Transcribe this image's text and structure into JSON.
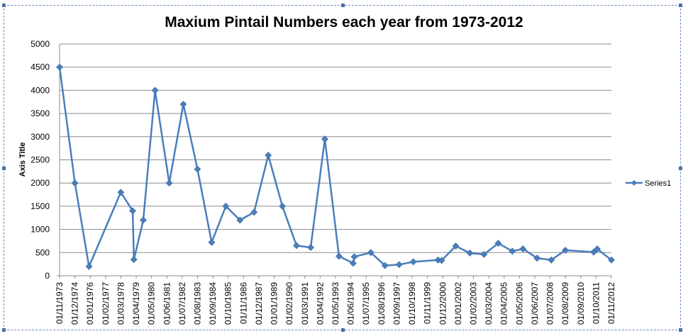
{
  "chart_data": {
    "type": "line",
    "title": "Maxium Pintail Numbers each year from 1973-2012",
    "xlabel": "",
    "ylabel": "Axis Title",
    "ylim": [
      0,
      5000
    ],
    "yticks": [
      0,
      500,
      1000,
      1500,
      2000,
      2500,
      3000,
      3500,
      4000,
      4500,
      5000
    ],
    "xlim": [
      "1973-11-01",
      "2012-11-01"
    ],
    "xtick_labels": [
      "01/11/1973",
      "01/12/1974",
      "01/01/1976",
      "01/02/1977",
      "01/03/1978",
      "01/04/1979",
      "01/05/1980",
      "01/06/1981",
      "01/07/1982",
      "01/08/1983",
      "01/09/1984",
      "01/10/1985",
      "01/11/1986",
      "01/12/1987",
      "01/01/1989",
      "01/02/1990",
      "01/03/1991",
      "01/04/1992",
      "01/05/1993",
      "01/06/1994",
      "01/07/1995",
      "01/08/1996",
      "01/09/1997",
      "01/10/1998",
      "01/11/1999",
      "01/12/2000",
      "01/01/2002",
      "01/02/2003",
      "01/03/2004",
      "01/04/2005",
      "01/05/2006",
      "01/06/2007",
      "01/07/2008",
      "01/08/2009",
      "01/09/2010",
      "01/10/2011",
      "01/11/2012"
    ],
    "grid": true,
    "legend": "right",
    "series": [
      {
        "name": "Series1",
        "color": "#4a7ebb",
        "points": [
          {
            "x": "1973-11-01",
            "y": 4500
          },
          {
            "x": "1974-12-01",
            "y": 2000
          },
          {
            "x": "1975-12-01",
            "y": 200
          },
          {
            "x": "1978-03-01",
            "y": 1800
          },
          {
            "x": "1979-01-01",
            "y": 1400
          },
          {
            "x": "1979-02-01",
            "y": 350
          },
          {
            "x": "1979-10-01",
            "y": 1200
          },
          {
            "x": "1980-08-01",
            "y": 4000
          },
          {
            "x": "1981-08-01",
            "y": 2000
          },
          {
            "x": "1982-08-01",
            "y": 3700
          },
          {
            "x": "1983-08-01",
            "y": 2300
          },
          {
            "x": "1984-08-01",
            "y": 720
          },
          {
            "x": "1985-08-01",
            "y": 1500
          },
          {
            "x": "1986-08-01",
            "y": 1200
          },
          {
            "x": "1987-08-01",
            "y": 1370
          },
          {
            "x": "1988-08-01",
            "y": 2600
          },
          {
            "x": "1989-08-01",
            "y": 1500
          },
          {
            "x": "1990-08-01",
            "y": 650
          },
          {
            "x": "1991-08-01",
            "y": 610
          },
          {
            "x": "1992-08-01",
            "y": 2950
          },
          {
            "x": "1993-08-01",
            "y": 420
          },
          {
            "x": "1994-08-01",
            "y": 270
          },
          {
            "x": "1994-09-01",
            "y": 410
          },
          {
            "x": "1995-11-01",
            "y": 500
          },
          {
            "x": "1996-11-01",
            "y": 220
          },
          {
            "x": "1997-11-01",
            "y": 240
          },
          {
            "x": "1998-11-01",
            "y": 300
          },
          {
            "x": "2000-08-01",
            "y": 340
          },
          {
            "x": "2000-11-01",
            "y": 330
          },
          {
            "x": "2001-11-01",
            "y": 640
          },
          {
            "x": "2002-11-01",
            "y": 490
          },
          {
            "x": "2003-11-01",
            "y": 460
          },
          {
            "x": "2004-11-01",
            "y": 700
          },
          {
            "x": "2005-11-01",
            "y": 530
          },
          {
            "x": "2006-08-01",
            "y": 580
          },
          {
            "x": "2007-08-01",
            "y": 380
          },
          {
            "x": "2008-08-01",
            "y": 340
          },
          {
            "x": "2009-08-01",
            "y": 550
          },
          {
            "x": "2011-08-01",
            "y": 510
          },
          {
            "x": "2011-11-01",
            "y": 580
          },
          {
            "x": "2012-11-01",
            "y": 340
          }
        ]
      }
    ]
  }
}
